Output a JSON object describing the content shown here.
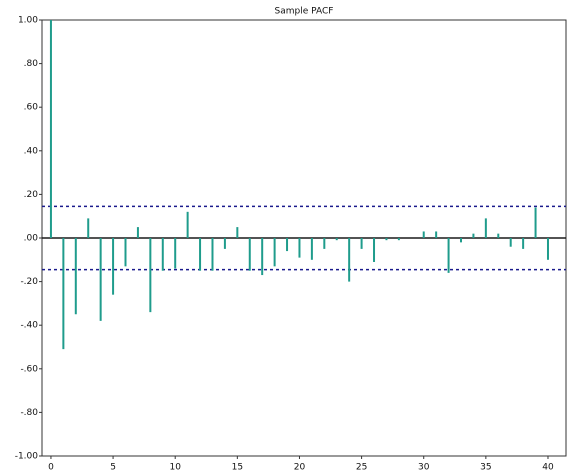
{
  "chart_data": {
    "type": "stem",
    "title": "Sample PACF",
    "x": [
      0,
      1,
      2,
      3,
      4,
      5,
      6,
      7,
      8,
      9,
      10,
      11,
      12,
      13,
      14,
      15,
      16,
      17,
      18,
      19,
      20,
      21,
      22,
      23,
      24,
      25,
      26,
      27,
      28,
      29,
      30,
      31,
      32,
      33,
      34,
      35,
      36,
      37,
      38,
      39,
      40
    ],
    "values": [
      1.0,
      -0.51,
      -0.35,
      0.09,
      -0.38,
      -0.26,
      -0.13,
      0.05,
      -0.34,
      -0.15,
      -0.14,
      0.12,
      -0.15,
      -0.15,
      -0.05,
      0.05,
      -0.15,
      -0.17,
      -0.13,
      -0.06,
      -0.09,
      -0.1,
      -0.05,
      -0.01,
      -0.2,
      -0.05,
      -0.11,
      -0.01,
      -0.01,
      0.0,
      0.03,
      0.03,
      -0.16,
      -0.02,
      0.02,
      0.09,
      0.02,
      -0.04,
      -0.05,
      0.14,
      -0.1
    ],
    "color": "#1f9c8c",
    "bounds": [
      0.145,
      -0.145
    ],
    "bounds_color": "#1a1a8c",
    "xlim": [
      -0.72,
      41.45
    ],
    "ylim": [
      -1.0,
      1.0
    ],
    "xticks": [
      0,
      5,
      10,
      15,
      20,
      25,
      30,
      35,
      40
    ],
    "yticks": [
      {
        "value": 1.0,
        "label": "1.00"
      },
      {
        "value": 0.8,
        "label": ".80"
      },
      {
        "value": 0.6,
        "label": ".60"
      },
      {
        "value": 0.4,
        "label": ".40"
      },
      {
        "value": 0.2,
        "label": ".20"
      },
      {
        "value": 0.0,
        "label": ".00"
      },
      {
        "value": -0.2,
        "label": "-.20"
      },
      {
        "value": -0.4,
        "label": "-.40"
      },
      {
        "value": -0.6,
        "label": "-.60"
      },
      {
        "value": -0.8,
        "label": "-.80"
      },
      {
        "value": -1.0,
        "label": "-1.00"
      }
    ],
    "grid": false
  }
}
